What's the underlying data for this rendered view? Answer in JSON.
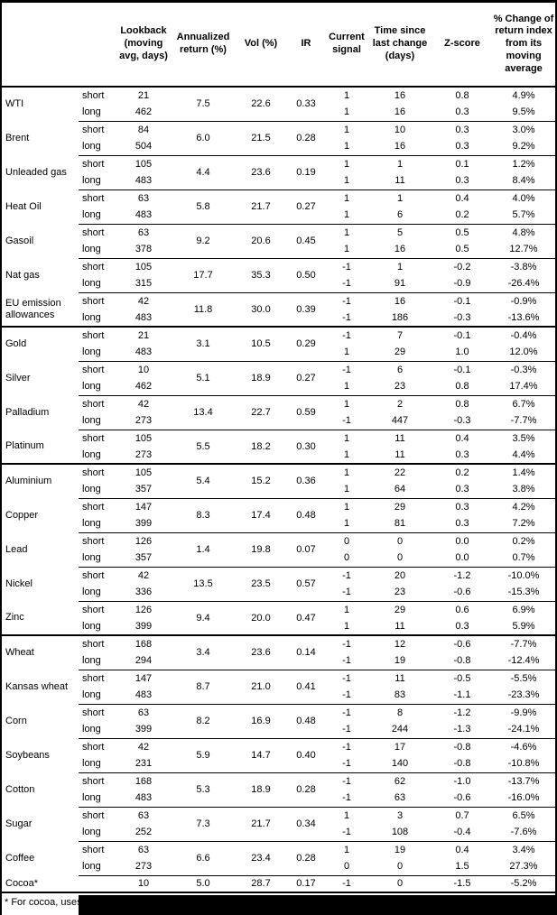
{
  "table": {
    "columns": [
      {
        "id": "name",
        "label": ""
      },
      {
        "id": "leg",
        "label": ""
      },
      {
        "id": "lookback",
        "label": "Lookback (moving avg, days)"
      },
      {
        "id": "annret",
        "label": "Annualized return (%)"
      },
      {
        "id": "vol",
        "label": "Vol (%)"
      },
      {
        "id": "ir",
        "label": "IR"
      },
      {
        "id": "signal",
        "label": "Current signal"
      },
      {
        "id": "time",
        "label": "Time since last change (days)"
      },
      {
        "id": "zscore",
        "label": "Z-score"
      },
      {
        "id": "pct",
        "label": "% Change of return index from its moving average"
      }
    ],
    "groups": [
      {
        "name": "WTI",
        "section_break": false,
        "annualized_return": "7.5",
        "vol": "22.6",
        "ir": "0.33",
        "legs": [
          {
            "leg": "short",
            "lookback": "21",
            "signal": "1",
            "time_since": "16",
            "z_score": "0.8",
            "pct_change": "4.9%"
          },
          {
            "leg": "long",
            "lookback": "462",
            "signal": "1",
            "time_since": "16",
            "z_score": "0.3",
            "pct_change": "9.5%"
          }
        ]
      },
      {
        "name": "Brent",
        "section_break": false,
        "annualized_return": "6.0",
        "vol": "21.5",
        "ir": "0.28",
        "legs": [
          {
            "leg": "short",
            "lookback": "84",
            "signal": "1",
            "time_since": "10",
            "z_score": "0.3",
            "pct_change": "3.0%"
          },
          {
            "leg": "long",
            "lookback": "504",
            "signal": "1",
            "time_since": "16",
            "z_score": "0.3",
            "pct_change": "9.2%"
          }
        ]
      },
      {
        "name": "Unleaded gas",
        "section_break": false,
        "annualized_return": "4.4",
        "vol": "23.6",
        "ir": "0.19",
        "legs": [
          {
            "leg": "short",
            "lookback": "105",
            "signal": "1",
            "time_since": "1",
            "z_score": "0.1",
            "pct_change": "1.2%"
          },
          {
            "leg": "long",
            "lookback": "483",
            "signal": "1",
            "time_since": "11",
            "z_score": "0.3",
            "pct_change": "8.4%"
          }
        ]
      },
      {
        "name": "Heat Oil",
        "section_break": false,
        "annualized_return": "5.8",
        "vol": "21.7",
        "ir": "0.27",
        "legs": [
          {
            "leg": "short",
            "lookback": "63",
            "signal": "1",
            "time_since": "1",
            "z_score": "0.4",
            "pct_change": "4.0%"
          },
          {
            "leg": "long",
            "lookback": "483",
            "signal": "1",
            "time_since": "6",
            "z_score": "0.2",
            "pct_change": "5.7%"
          }
        ]
      },
      {
        "name": "Gasoil",
        "section_break": false,
        "annualized_return": "9.2",
        "vol": "20.6",
        "ir": "0.45",
        "legs": [
          {
            "leg": "short",
            "lookback": "63",
            "signal": "1",
            "time_since": "5",
            "z_score": "0.5",
            "pct_change": "4.8%"
          },
          {
            "leg": "long",
            "lookback": "378",
            "signal": "1",
            "time_since": "16",
            "z_score": "0.5",
            "pct_change": "12.7%"
          }
        ]
      },
      {
        "name": "Nat gas",
        "section_break": false,
        "annualized_return": "17.7",
        "vol": "35.3",
        "ir": "0.50",
        "legs": [
          {
            "leg": "short",
            "lookback": "105",
            "signal": "-1",
            "time_since": "1",
            "z_score": "-0.2",
            "pct_change": "-3.8%"
          },
          {
            "leg": "long",
            "lookback": "315",
            "signal": "-1",
            "time_since": "91",
            "z_score": "-0.9",
            "pct_change": "-26.4%"
          }
        ]
      },
      {
        "name": "EU emission allowances",
        "section_break": false,
        "annualized_return": "11.8",
        "vol": "30.0",
        "ir": "0.39",
        "legs": [
          {
            "leg": "short",
            "lookback": "42",
            "signal": "-1",
            "time_since": "16",
            "z_score": "-0.1",
            "pct_change": "-0.9%"
          },
          {
            "leg": "long",
            "lookback": "483",
            "signal": "-1",
            "time_since": "186",
            "z_score": "-0.3",
            "pct_change": "-13.6%"
          }
        ]
      },
      {
        "name": "Gold",
        "section_break": true,
        "annualized_return": "3.1",
        "vol": "10.5",
        "ir": "0.29",
        "legs": [
          {
            "leg": "short",
            "lookback": "21",
            "signal": "-1",
            "time_since": "7",
            "z_score": "-0.1",
            "pct_change": "-0.4%"
          },
          {
            "leg": "long",
            "lookback": "483",
            "signal": "1",
            "time_since": "29",
            "z_score": "1.0",
            "pct_change": "12.0%"
          }
        ]
      },
      {
        "name": "Silver",
        "section_break": false,
        "annualized_return": "5.1",
        "vol": "18.9",
        "ir": "0.27",
        "legs": [
          {
            "leg": "short",
            "lookback": "10",
            "signal": "-1",
            "time_since": "6",
            "z_score": "-0.1",
            "pct_change": "-0.3%"
          },
          {
            "leg": "long",
            "lookback": "462",
            "signal": "1",
            "time_since": "23",
            "z_score": "0.8",
            "pct_change": "17.4%"
          }
        ]
      },
      {
        "name": "Palladium",
        "section_break": false,
        "annualized_return": "13.4",
        "vol": "22.7",
        "ir": "0.59",
        "legs": [
          {
            "leg": "short",
            "lookback": "42",
            "signal": "1",
            "time_since": "2",
            "z_score": "0.8",
            "pct_change": "6.7%"
          },
          {
            "leg": "long",
            "lookback": "273",
            "signal": "-1",
            "time_since": "447",
            "z_score": "-0.3",
            "pct_change": "-7.7%"
          }
        ]
      },
      {
        "name": "Platinum",
        "section_break": false,
        "annualized_return": "5.5",
        "vol": "18.2",
        "ir": "0.30",
        "legs": [
          {
            "leg": "short",
            "lookback": "105",
            "signal": "1",
            "time_since": "11",
            "z_score": "0.4",
            "pct_change": "3.5%"
          },
          {
            "leg": "long",
            "lookback": "273",
            "signal": "1",
            "time_since": "11",
            "z_score": "0.3",
            "pct_change": "4.4%"
          }
        ]
      },
      {
        "name": "Aluminium",
        "section_break": true,
        "annualized_return": "5.4",
        "vol": "15.2",
        "ir": "0.36",
        "legs": [
          {
            "leg": "short",
            "lookback": "105",
            "signal": "1",
            "time_since": "22",
            "z_score": "0.2",
            "pct_change": "1.4%"
          },
          {
            "leg": "long",
            "lookback": "357",
            "signal": "1",
            "time_since": "64",
            "z_score": "0.3",
            "pct_change": "3.8%"
          }
        ]
      },
      {
        "name": "Copper",
        "section_break": false,
        "annualized_return": "8.3",
        "vol": "17.4",
        "ir": "0.48",
        "legs": [
          {
            "leg": "short",
            "lookback": "147",
            "signal": "1",
            "time_since": "29",
            "z_score": "0.3",
            "pct_change": "4.2%"
          },
          {
            "leg": "long",
            "lookback": "399",
            "signal": "1",
            "time_since": "81",
            "z_score": "0.3",
            "pct_change": "7.2%"
          }
        ]
      },
      {
        "name": "Lead",
        "section_break": false,
        "annualized_return": "1.4",
        "vol": "19.8",
        "ir": "0.07",
        "legs": [
          {
            "leg": "short",
            "lookback": "126",
            "signal": "0",
            "time_since": "0",
            "z_score": "0.0",
            "pct_change": "0.2%"
          },
          {
            "leg": "long",
            "lookback": "357",
            "signal": "0",
            "time_since": "0",
            "z_score": "0.0",
            "pct_change": "0.7%"
          }
        ]
      },
      {
        "name": "Nickel",
        "section_break": false,
        "annualized_return": "13.5",
        "vol": "23.5",
        "ir": "0.57",
        "legs": [
          {
            "leg": "short",
            "lookback": "42",
            "signal": "-1",
            "time_since": "20",
            "z_score": "-1.2",
            "pct_change": "-10.0%"
          },
          {
            "leg": "long",
            "lookback": "336",
            "signal": "-1",
            "time_since": "23",
            "z_score": "-0.6",
            "pct_change": "-15.3%"
          }
        ]
      },
      {
        "name": "Zinc",
        "section_break": false,
        "annualized_return": "9.4",
        "vol": "20.0",
        "ir": "0.47",
        "legs": [
          {
            "leg": "short",
            "lookback": "126",
            "signal": "1",
            "time_since": "29",
            "z_score": "0.6",
            "pct_change": "6.9%"
          },
          {
            "leg": "long",
            "lookback": "399",
            "signal": "1",
            "time_since": "11",
            "z_score": "0.3",
            "pct_change": "5.9%"
          }
        ]
      },
      {
        "name": "Wheat",
        "section_break": true,
        "annualized_return": "3.4",
        "vol": "23.6",
        "ir": "0.14",
        "legs": [
          {
            "leg": "short",
            "lookback": "168",
            "signal": "-1",
            "time_since": "12",
            "z_score": "-0.6",
            "pct_change": "-7.7%"
          },
          {
            "leg": "long",
            "lookback": "294",
            "signal": "-1",
            "time_since": "19",
            "z_score": "-0.8",
            "pct_change": "-12.4%"
          }
        ]
      },
      {
        "name": "Kansas wheat",
        "section_break": false,
        "annualized_return": "8.7",
        "vol": "21.0",
        "ir": "0.41",
        "legs": [
          {
            "leg": "short",
            "lookback": "147",
            "signal": "-1",
            "time_since": "11",
            "z_score": "-0.5",
            "pct_change": "-5.5%"
          },
          {
            "leg": "long",
            "lookback": "483",
            "signal": "-1",
            "time_since": "83",
            "z_score": "-1.1",
            "pct_change": "-23.3%"
          }
        ]
      },
      {
        "name": "Corn",
        "section_break": false,
        "annualized_return": "8.2",
        "vol": "16.9",
        "ir": "0.48",
        "legs": [
          {
            "leg": "short",
            "lookback": "63",
            "signal": "-1",
            "time_since": "8",
            "z_score": "-1.2",
            "pct_change": "-9.9%"
          },
          {
            "leg": "long",
            "lookback": "399",
            "signal": "-1",
            "time_since": "244",
            "z_score": "-1.3",
            "pct_change": "-24.1%"
          }
        ]
      },
      {
        "name": "Soybeans",
        "section_break": false,
        "annualized_return": "5.9",
        "vol": "14.7",
        "ir": "0.40",
        "legs": [
          {
            "leg": "short",
            "lookback": "42",
            "signal": "-1",
            "time_since": "17",
            "z_score": "-0.8",
            "pct_change": "-4.6%"
          },
          {
            "leg": "long",
            "lookback": "231",
            "signal": "-1",
            "time_since": "140",
            "z_score": "-0.8",
            "pct_change": "-10.8%"
          }
        ]
      },
      {
        "name": "Cotton",
        "section_break": false,
        "annualized_return": "5.3",
        "vol": "18.9",
        "ir": "0.28",
        "legs": [
          {
            "leg": "short",
            "lookback": "168",
            "signal": "-1",
            "time_since": "62",
            "z_score": "-1.0",
            "pct_change": "-13.7%"
          },
          {
            "leg": "long",
            "lookback": "483",
            "signal": "-1",
            "time_since": "63",
            "z_score": "-0.6",
            "pct_change": "-16.0%"
          }
        ]
      },
      {
        "name": "Sugar",
        "section_break": false,
        "annualized_return": "7.3",
        "vol": "21.7",
        "ir": "0.34",
        "legs": [
          {
            "leg": "short",
            "lookback": "63",
            "signal": "1",
            "time_since": "3",
            "z_score": "0.7",
            "pct_change": "6.5%"
          },
          {
            "leg": "long",
            "lookback": "252",
            "signal": "-1",
            "time_since": "108",
            "z_score": "-0.4",
            "pct_change": "-7.6%"
          }
        ]
      },
      {
        "name": "Coffee",
        "section_break": false,
        "annualized_return": "6.6",
        "vol": "23.4",
        "ir": "0.28",
        "legs": [
          {
            "leg": "short",
            "lookback": "63",
            "signal": "1",
            "time_since": "19",
            "z_score": "0.4",
            "pct_change": "3.4%"
          },
          {
            "leg": "long",
            "lookback": "273",
            "signal": "0",
            "time_since": "0",
            "z_score": "1.5",
            "pct_change": "27.3%"
          }
        ]
      },
      {
        "name": "Cocoa*",
        "section_break": false,
        "annualized_return": "5.0",
        "vol": "28.7",
        "ir": "0.17",
        "legs": [
          {
            "leg": "",
            "lookback": "10",
            "signal": "-1",
            "time_since": "0",
            "z_score": "-1.5",
            "pct_change": "-5.2%"
          }
        ]
      }
    ],
    "footnote": "* For cocoa, uses"
  }
}
